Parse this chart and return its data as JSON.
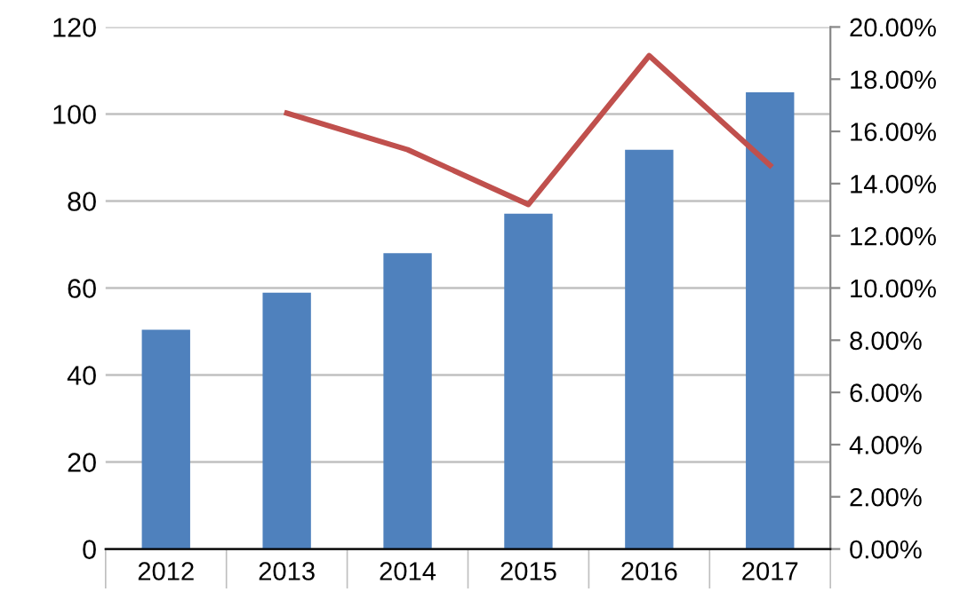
{
  "chart_data": {
    "type": "bar",
    "categories": [
      "2012",
      "2013",
      "2014",
      "2015",
      "2016",
      "2017"
    ],
    "series": [
      {
        "color": "#4f81bd",
        "values": [
          50.4,
          58.9,
          68.0,
          77.1,
          91.8,
          105.0
        ]
      },
      {
        "type": "line",
        "axis": "y2",
        "color": "#c0504d",
        "values": [
          null,
          16.7,
          15.3,
          13.2,
          18.9,
          14.7
        ]
      }
    ],
    "ylim": [
      0,
      120
    ],
    "yticks": [
      0,
      20,
      40,
      60,
      80,
      100,
      120
    ],
    "y2lim": [
      0,
      20
    ],
    "y2ticks": [
      {
        "value": 0,
        "label": "0.00%"
      },
      {
        "value": 2,
        "label": "2.00%"
      },
      {
        "value": 4,
        "label": "4.00%"
      },
      {
        "value": 6,
        "label": "6.00%"
      },
      {
        "value": 8,
        "label": "8.00%"
      },
      {
        "value": 10,
        "label": "10.00%"
      },
      {
        "value": 12,
        "label": "12.00%"
      },
      {
        "value": 14,
        "label": "14.00%"
      },
      {
        "value": 16,
        "label": "16.00%"
      },
      {
        "value": 18,
        "label": "18.00%"
      },
      {
        "value": 20,
        "label": "20.00%"
      }
    ],
    "grid": "y",
    "marker": "none",
    "line_style": "solid"
  }
}
